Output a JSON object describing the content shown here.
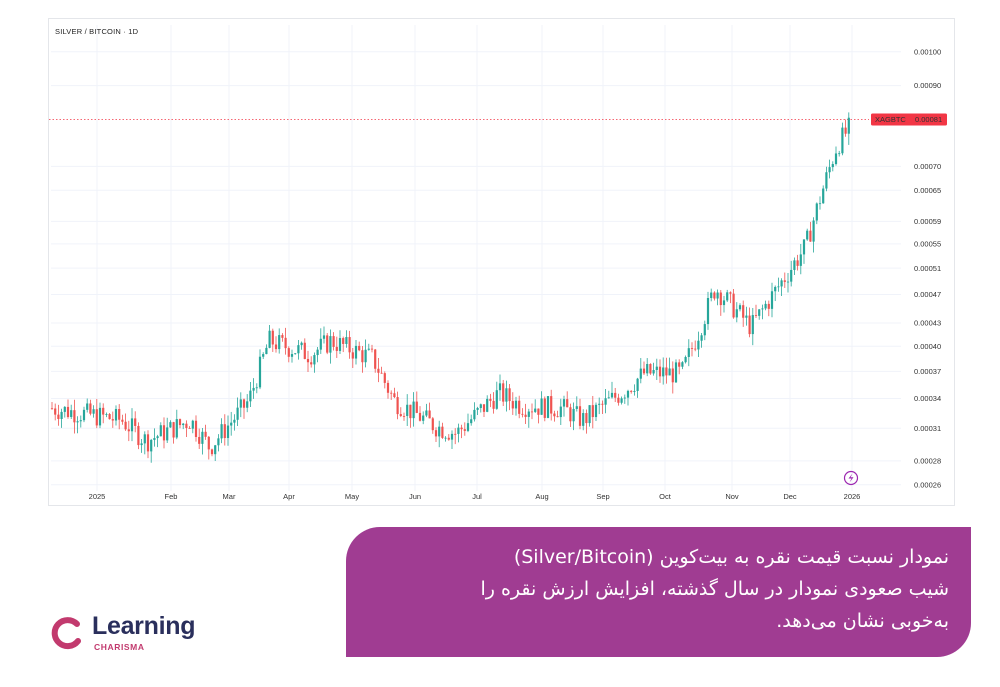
{
  "chart": {
    "title": "SILVER / BITCOIN · 1D",
    "symbol": "XAGBTC",
    "last_price": "0.00081",
    "bull_color": "#26a69a",
    "bear_color": "#ef5350",
    "badge_color": "#f23645"
  },
  "caption": {
    "lines": [
      "نمودار نسبت قیمت نقره به بیت‌کوین (Silver/Bitcoin)",
      "شیب صعودی نمودار در سال گذشته، افزایش ارزش نقره را",
      "به‌خوبی نشان می‌دهد."
    ]
  },
  "logo": {
    "word": "Learning",
    "sub": "CHARISMA",
    "icon": "charisma-c-icon",
    "color_primary": "#2a2f5c",
    "color_accent": "#c23a6e"
  },
  "chart_data": {
    "type": "candlestick",
    "title": "SILVER / BITCOIN · 1D",
    "x_labels": [
      "2025",
      "Feb",
      "Mar",
      "Apr",
      "May",
      "Jun",
      "Jul",
      "Aug",
      "Sep",
      "Oct",
      "Nov",
      "Dec",
      "2026"
    ],
    "y_ticks": [
      "0.00100",
      "0.00090",
      "0.00081",
      "0.00070",
      "0.00065",
      "0.00059",
      "0.00055",
      "0.00051",
      "0.00047",
      "0.00043",
      "0.00040",
      "0.00037",
      "0.00034",
      "0.00031",
      "0.00028",
      "0.00026"
    ],
    "y_scale": "log",
    "ylim": [
      0.000255,
      0.00106
    ],
    "last_value": 0.00081,
    "series": [
      {
        "name": "XAGBTC",
        "points": [
          [
            "2025-01",
            0.000318
          ],
          [
            "2025-01",
            0.000298
          ],
          [
            "2025-02",
            0.000318
          ],
          [
            "2025-02",
            0.000292
          ],
          [
            "2025-03",
            0.000338
          ],
          [
            "2025-03",
            0.000407
          ],
          [
            "2025-04",
            0.00039
          ],
          [
            "2025-04",
            0.000407
          ],
          [
            "2025-05",
            0.000385
          ],
          [
            "2025-05",
            0.000338
          ],
          [
            "2025-06",
            0.000312
          ],
          [
            "2025-06",
            0.000305
          ],
          [
            "2025-07",
            0.000346
          ],
          [
            "2025-07",
            0.000333
          ],
          [
            "2025-08",
            0.00033
          ],
          [
            "2025-08",
            0.000318
          ],
          [
            "2025-09",
            0.000348
          ],
          [
            "2025-09",
            0.000368
          ],
          [
            "2025-10",
            0.000368
          ],
          [
            "2025-10",
            0.000418
          ],
          [
            "2025-10",
            0.00048
          ],
          [
            "2025-11",
            0.000425
          ],
          [
            "2025-11",
            0.000465
          ],
          [
            "2025-12",
            0.000545
          ],
          [
            "2025-12",
            0.00064
          ],
          [
            "2025-12",
            0.000745
          ],
          [
            "2026-01",
            0.00086
          ],
          [
            "2026-01",
            0.00081
          ]
        ]
      }
    ]
  }
}
